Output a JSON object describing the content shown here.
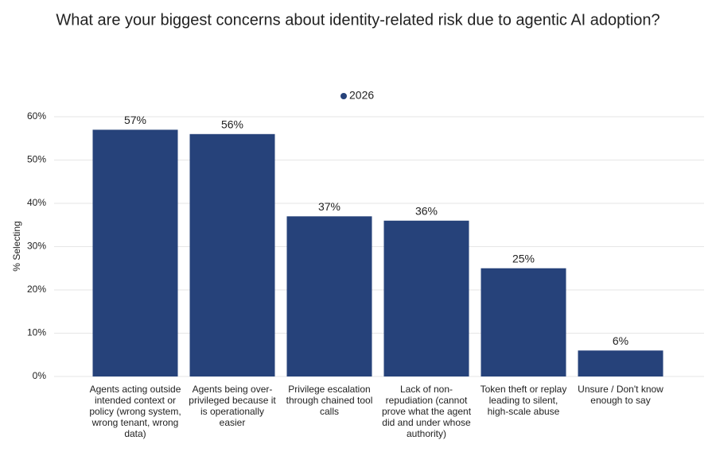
{
  "chart_data": {
    "type": "bar",
    "title": "What are your biggest concerns about identity-related risk due to agentic AI adoption?",
    "y_label": "% Selecting",
    "categories": [
      "Agents acting outside intended context or policy (wrong system, wrong tenant, wrong data)",
      "Agents being over-privileged because it is operationally easier",
      "Privilege escalation through chained tool calls",
      "Lack of non-repudiation (cannot prove what the agent did and under whose authority)",
      "Token theft or replay leading to silent, high-scale abuse",
      "Unsure / Don't know enough to say"
    ],
    "series": [
      {
        "name": "2026",
        "color": "#26427a",
        "values": [
          57,
          56,
          37,
          36,
          25,
          6
        ],
        "value_labels": [
          "57%",
          "56%",
          "37%",
          "36%",
          "25%",
          "6%"
        ]
      }
    ],
    "ylim": [
      0,
      60
    ],
    "yticks": [
      {
        "value": 0,
        "label": "0%"
      },
      {
        "value": 10,
        "label": "10%"
      },
      {
        "value": 20,
        "label": "20%"
      },
      {
        "value": 30,
        "label": "30%"
      },
      {
        "value": 40,
        "label": "40%"
      },
      {
        "value": 50,
        "label": "50%"
      },
      {
        "value": 60,
        "label": "60%"
      }
    ],
    "grid": true
  }
}
